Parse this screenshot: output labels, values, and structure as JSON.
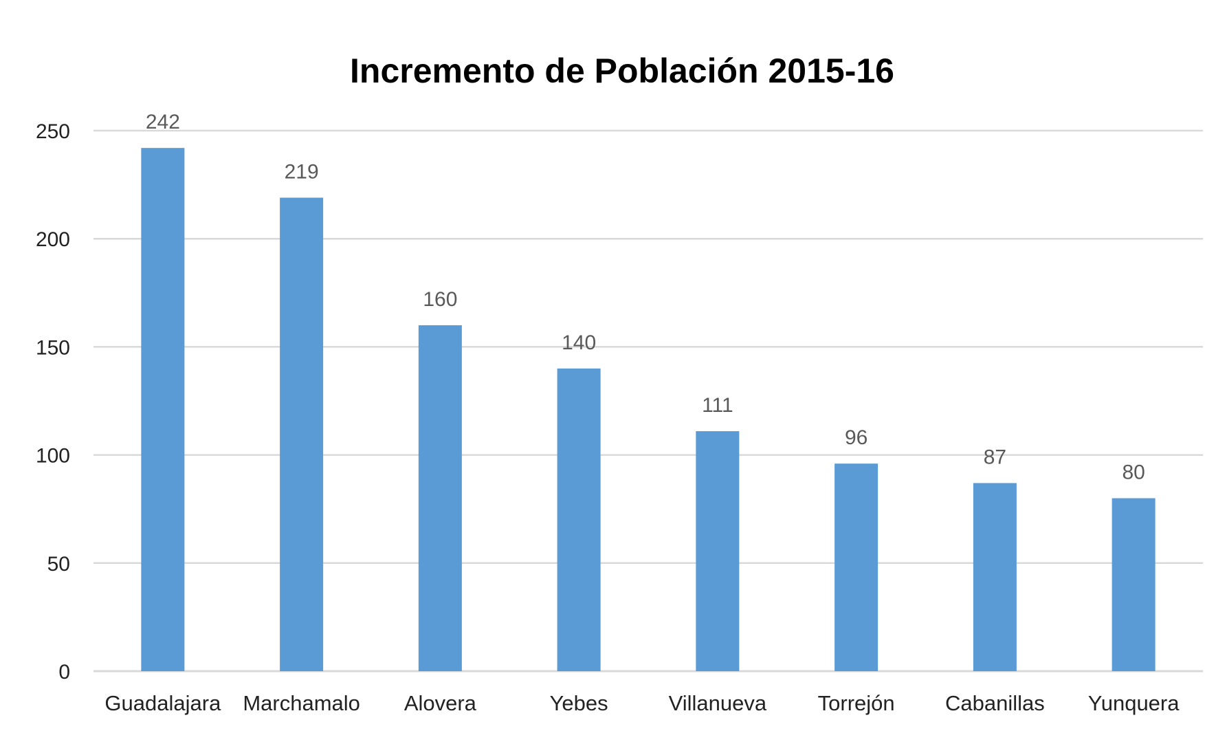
{
  "chart_data": {
    "type": "bar",
    "title": "Incremento de Población 2015-16",
    "xlabel": "",
    "ylabel": "",
    "categories": [
      "Guadalajara",
      "Marchamalo",
      "Alovera",
      "Yebes",
      "Villanueva",
      "Torrejón",
      "Cabanillas",
      "Yunquera"
    ],
    "values": [
      242,
      219,
      160,
      140,
      111,
      96,
      87,
      80
    ],
    "data_labels": [
      "242",
      "219",
      "160",
      "140",
      "111",
      "96",
      "87",
      "80"
    ],
    "ylim": [
      0,
      250
    ],
    "yticks": [
      "0",
      "50",
      "100",
      "150",
      "200",
      "250"
    ],
    "ytick_values": [
      0,
      50,
      100,
      150,
      200,
      250
    ],
    "grid": true,
    "legend": "none",
    "bar_color": "#5b9bd5"
  }
}
